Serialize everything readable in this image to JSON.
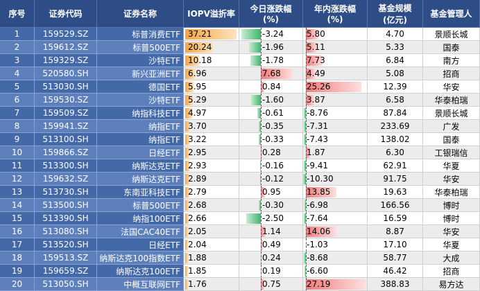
{
  "table": {
    "header": [
      [
        "序号"
      ],
      [
        "证券代码"
      ],
      [
        "证券名称"
      ],
      [
        "IOPV溢折率"
      ],
      [
        "今日涨跌幅",
        "(%)"
      ],
      [
        "年内涨跌幅",
        "(%)"
      ],
      [
        "基金规模",
        "(亿元)"
      ],
      [
        "基金管理人"
      ]
    ],
    "rows": [
      [
        "1",
        "159529.SZ",
        "标普消费ETF",
        "37.21",
        "-3.24",
        "5.80",
        "4.70",
        "景顺长城"
      ],
      [
        "2",
        "159612.SZ",
        "标普500ETF",
        "20.24",
        "-1.96",
        "5.11",
        "5.33",
        "国泰"
      ],
      [
        "3",
        "159329.SZ",
        "沙特ETF",
        "10.18",
        "-1.78",
        "7.73",
        "6.84",
        "南方"
      ],
      [
        "4",
        "520580.SH",
        "新兴亚洲ETF",
        "6.96",
        "7.68",
        "4.49",
        "5.08",
        "招商"
      ],
      [
        "5",
        "513030.SH",
        "德国ETF",
        "5.95",
        "0.84",
        "25.26",
        "12.39",
        "华安"
      ],
      [
        "6",
        "159530.SZ",
        "沙特ETF",
        "5.29",
        "-1.60",
        "3.87",
        "6.58",
        "华泰柏瑞"
      ],
      [
        "7",
        "159509.SZ",
        "纳指科技ETF",
        "4.97",
        "-0.61",
        "-8.76",
        "87.84",
        "景顺长城"
      ],
      [
        "8",
        "159941.SZ",
        "纳指ETF",
        "3.70",
        "-0.35",
        "-7.31",
        "233.69",
        "广发"
      ],
      [
        "9",
        "513100.SH",
        "纳指ETF",
        "3.22",
        "-0.33",
        "-7.43",
        "138.02",
        "国泰"
      ],
      [
        "10",
        "159866.SZ",
        "日经ETF",
        "2.95",
        "0.28",
        "1.87",
        "6.30",
        "工银瑞信"
      ],
      [
        "11",
        "513300.SH",
        "纳斯达克ETF",
        "2.93",
        "-0.16",
        "-9.41",
        "62.91",
        "华夏"
      ],
      [
        "12",
        "159632.SZ",
        "纳斯达克ETF",
        "2.89",
        "-0.12",
        "-10.30",
        "91.75",
        "华安"
      ],
      [
        "13",
        "513730.SH",
        "东南亚科技ETF",
        "2.79",
        "0.95",
        "13.85",
        "19.63",
        "华泰柏瑞"
      ],
      [
        "14",
        "513500.SH",
        "标普500ETF",
        "2.68",
        "-0.30",
        "-6.98",
        "166.56",
        "博时"
      ],
      [
        "15",
        "513390.SH",
        "纳指100ETF",
        "2.66",
        "-2.50",
        "-7.64",
        "16.59",
        "博时"
      ],
      [
        "16",
        "513080.SH",
        "法国CAC40ETF",
        "2.05",
        "1.14",
        "14.06",
        "8.87",
        "华安"
      ],
      [
        "17",
        "513520.SH",
        "日经ETF",
        "2.04",
        "0.49",
        "-1.03",
        "17.10",
        "华夏"
      ],
      [
        "18",
        "159513.SZ",
        "纳斯达克100指数ETF",
        "1.88",
        "0.24",
        "-8.68",
        "58.77",
        "大成"
      ],
      [
        "19",
        "159659.SZ",
        "纳斯达克100ETF",
        "1.85",
        "0.19",
        "-6.60",
        "46.42",
        "招商"
      ],
      [
        "20",
        "513050.SH",
        "中概互联网ETF",
        "1.76",
        "0.75",
        "27.19",
        "388.83",
        "易方达"
      ]
    ]
  }
}
